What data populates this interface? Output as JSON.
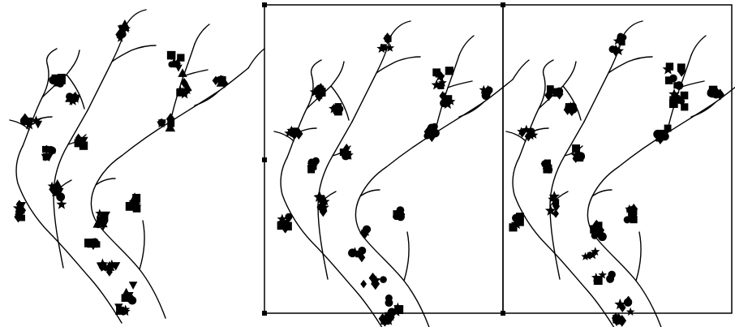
{
  "figure": {
    "panels": [
      {
        "id": "panel-a",
        "framed": false,
        "symbol_mix": [
          "star",
          "triangle",
          "triangle-down",
          "circle",
          "square",
          "diamond"
        ]
      },
      {
        "id": "panel-b",
        "framed": true,
        "symbol_mix": [
          "star",
          "square",
          "diamond",
          "circle"
        ]
      },
      {
        "id": "panel-c",
        "framed": true,
        "symbol_mix": [
          "star",
          "square",
          "diamond",
          "circle"
        ]
      }
    ],
    "ink_color": "#000000",
    "background": "#ffffff"
  }
}
